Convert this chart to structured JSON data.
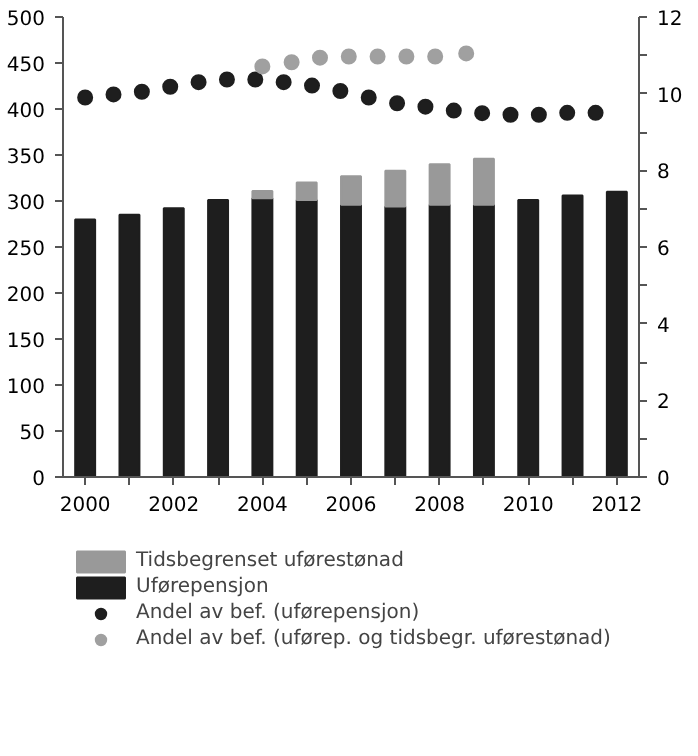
{
  "chart_data": {
    "type": "bar",
    "stacked": true,
    "x": [
      2000,
      2001,
      2002,
      2003,
      2004,
      2005,
      2006,
      2007,
      2008,
      2009,
      2010,
      2011,
      2012
    ],
    "series": [
      {
        "name": "Uførepensjon",
        "color": "#1e1e1e",
        "values": [
          280,
          285,
          292,
          301,
          303,
          301,
          296,
          294,
          296,
          296,
          301,
          306,
          310
        ]
      },
      {
        "name": "Tidsbegrenset uførestønad",
        "color": "#999999",
        "values": [
          null,
          null,
          null,
          null,
          8,
          19,
          31,
          39,
          44,
          50,
          null,
          null,
          null
        ]
      },
      {
        "name": "Andel av bef. (uførepensjon)",
        "type": "scatter",
        "axis": "y2",
        "color": "#1e1e1e",
        "x": [
          2000,
          2000.64,
          2001.28,
          2001.92,
          2002.56,
          2003.2,
          2003.84,
          2004.48,
          2005.12,
          2005.76,
          2006.4,
          2007.04,
          2007.68,
          2008.32,
          2008.96,
          2009.6,
          2010.24,
          2010.88,
          2011.52
        ],
        "values": [
          9.9,
          9.98,
          10.05,
          10.18,
          10.3,
          10.37,
          10.37,
          10.3,
          10.21,
          10.07,
          9.9,
          9.75,
          9.66,
          9.56,
          9.49,
          9.45,
          9.45,
          9.5,
          9.5
        ]
      },
      {
        "name": "Andel av bef. (uførep. og tidsbegr. uførestønad)",
        "type": "scatter",
        "axis": "y2",
        "color": "#a0a0a0",
        "x": [
          2004.0,
          2004.66,
          2005.3,
          2005.95,
          2006.6,
          2007.25,
          2007.9,
          2008.6
        ],
        "values": [
          10.71,
          10.82,
          10.94,
          10.97,
          10.97,
          10.97,
          10.97,
          11.05
        ]
      }
    ],
    "xlim": [
      1999.5,
      2012.5
    ],
    "xticks": [
      2000,
      {
        "value": 2001,
        "label": null
      },
      2002,
      {
        "value": 2003,
        "label": null
      },
      2004,
      {
        "value": 2005,
        "label": null
      },
      2006,
      {
        "value": 2007,
        "label": null
      },
      2008,
      {
        "value": 2009,
        "label": null
      },
      2010,
      {
        "value": 2011,
        "label": null
      },
      2012
    ],
    "ylim": [
      0,
      500
    ],
    "yticks": [
      0,
      50,
      100,
      150,
      200,
      250,
      300,
      350,
      400,
      450,
      500
    ],
    "y2lim": [
      0,
      12
    ],
    "y2ticks": [
      0,
      {
        "value": 1,
        "label": null
      },
      2,
      {
        "value": 3,
        "label": null
      },
      4,
      {
        "value": 5,
        "label": null
      },
      6,
      {
        "value": 7,
        "label": null
      },
      8,
      {
        "value": 9,
        "label": null
      },
      10,
      {
        "value": 11,
        "label": null
      },
      12
    ],
    "marker": "circle",
    "grid": false,
    "legend": "bottom"
  }
}
